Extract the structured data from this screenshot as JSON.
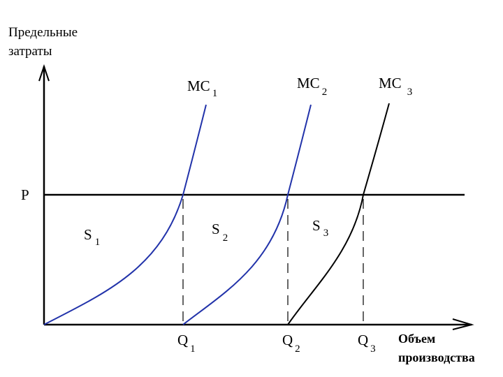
{
  "y_axis": {
    "lines": [
      "Предельные",
      "затраты"
    ]
  },
  "x_axis": {
    "lines": [
      "Объем",
      "производства"
    ]
  },
  "price_label": "P",
  "curves": [
    {
      "label": "MC",
      "sub": "1"
    },
    {
      "label": "MC",
      "sub": "2"
    },
    {
      "label": "MC",
      "sub": "3"
    }
  ],
  "areas": [
    {
      "label": "S",
      "sub": "1"
    },
    {
      "label": "S",
      "sub": "2"
    },
    {
      "label": "S",
      "sub": "3"
    }
  ],
  "quantities": [
    {
      "label": "Q",
      "sub": "1"
    },
    {
      "label": "Q",
      "sub": "2"
    },
    {
      "label": "Q",
      "sub": "3"
    }
  ]
}
